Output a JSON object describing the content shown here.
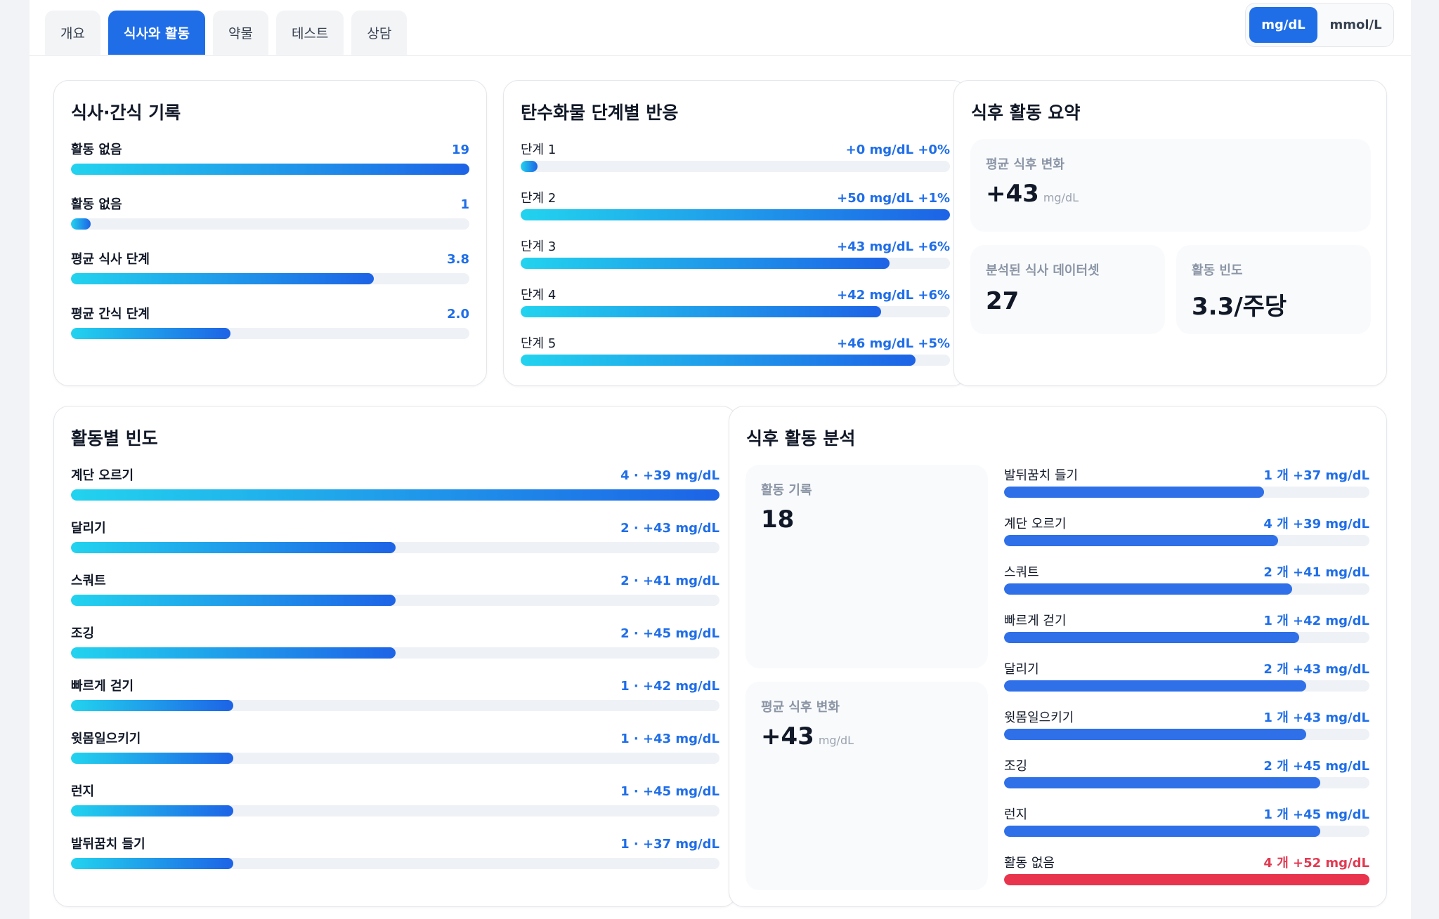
{
  "tabs": [
    {
      "label": "개요",
      "active": false
    },
    {
      "label": "식사와 활동",
      "active": true
    },
    {
      "label": "약물",
      "active": false
    },
    {
      "label": "테스트",
      "active": false
    },
    {
      "label": "상담",
      "active": false
    }
  ],
  "units": [
    {
      "label": "mg/dL",
      "active": true
    },
    {
      "label": "mmol/L",
      "active": false
    }
  ],
  "meal_log": {
    "title": "식사·간식 기록",
    "rows": [
      {
        "label": "활동 없음",
        "value": "19",
        "fill": 1.0
      },
      {
        "label": "활동 없음",
        "value": "1",
        "fill": 0.05
      },
      {
        "label": "평균 식사 단계",
        "value": "3.8",
        "fill": 0.76
      },
      {
        "label": "평균 간식 단계",
        "value": "2.0",
        "fill": 0.4
      }
    ]
  },
  "carb_response": {
    "title": "탄수화물 단계별 반응",
    "rows": [
      {
        "label": "단계 1",
        "value": "+0 mg/dL  +0%",
        "fill": 0.04
      },
      {
        "label": "단계 2",
        "value": "+50 mg/dL  +1%",
        "fill": 1.0
      },
      {
        "label": "단계 3",
        "value": "+43 mg/dL  +6%",
        "fill": 0.86
      },
      {
        "label": "단계 4",
        "value": "+42 mg/dL  +6%",
        "fill": 0.84
      },
      {
        "label": "단계 5",
        "value": "+46 mg/dL  +5%",
        "fill": 0.92
      }
    ]
  },
  "post_summary": {
    "title": "식후 활동 요약",
    "avg_change_label": "평균 식후 변화",
    "avg_change_value": "+43",
    "avg_change_unit": "mg/dL",
    "datasets_label": "분석된 식사 데이터셋",
    "datasets_value": "27",
    "frequency_label": "활동 빈도",
    "frequency_value": "3.3/주당"
  },
  "activity_frequency": {
    "title": "활동별 빈도",
    "rows": [
      {
        "label": "계단 오르기",
        "value": "4 · +39 mg/dL",
        "fill": 1.0
      },
      {
        "label": "달리기",
        "value": "2 · +43 mg/dL",
        "fill": 0.5
      },
      {
        "label": "스쿼트",
        "value": "2 · +41 mg/dL",
        "fill": 0.5
      },
      {
        "label": "조깅",
        "value": "2 · +45 mg/dL",
        "fill": 0.5
      },
      {
        "label": "빠르게 걷기",
        "value": "1 · +42 mg/dL",
        "fill": 0.25
      },
      {
        "label": "윗몸일으키기",
        "value": "1 · +43 mg/dL",
        "fill": 0.25
      },
      {
        "label": "런지",
        "value": "1 · +45 mg/dL",
        "fill": 0.25
      },
      {
        "label": "발뒤꿈치 들기",
        "value": "1 · +37 mg/dL",
        "fill": 0.25
      }
    ]
  },
  "post_analysis": {
    "title": "식후 활동 분석",
    "records_label": "활동 기록",
    "records_value": "18",
    "avg_change_label": "평균 식후 변화",
    "avg_change_value": "+43",
    "avg_change_unit": "mg/dL",
    "rows": [
      {
        "label": "발뒤꿈치 들기",
        "value": "1 개  +37 mg/dL",
        "fill": 0.712,
        "color": "blue"
      },
      {
        "label": "계단 오르기",
        "value": "4 개  +39 mg/dL",
        "fill": 0.75,
        "color": "blue"
      },
      {
        "label": "스쿼트",
        "value": "2 개  +41 mg/dL",
        "fill": 0.788,
        "color": "blue"
      },
      {
        "label": "빠르게 걷기",
        "value": "1 개  +42 mg/dL",
        "fill": 0.808,
        "color": "blue"
      },
      {
        "label": "달리기",
        "value": "2 개  +43 mg/dL",
        "fill": 0.827,
        "color": "blue"
      },
      {
        "label": "윗몸일으키기",
        "value": "1 개  +43 mg/dL",
        "fill": 0.827,
        "color": "blue"
      },
      {
        "label": "조깅",
        "value": "2 개  +45 mg/dL",
        "fill": 0.865,
        "color": "blue"
      },
      {
        "label": "런지",
        "value": "1 개  +45 mg/dL",
        "fill": 0.865,
        "color": "blue"
      },
      {
        "label": "활동 없음",
        "value": "4 개  +52 mg/dL",
        "fill": 1.0,
        "color": "red"
      }
    ]
  }
}
